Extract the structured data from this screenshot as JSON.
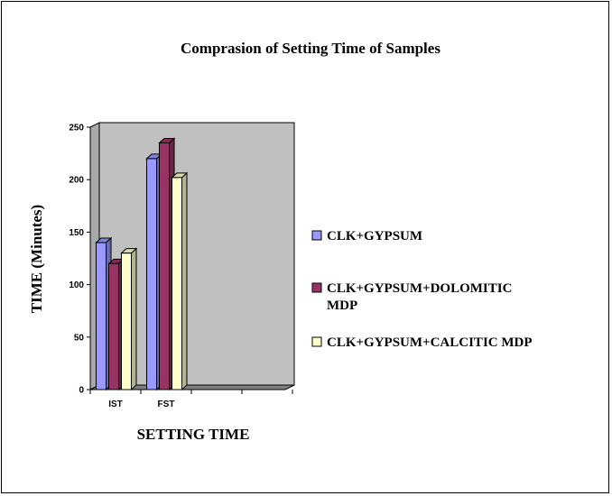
{
  "chart_data": {
    "type": "bar",
    "title": "Comprasion of Setting Time of Samples",
    "xlabel": "SETTING TIME",
    "ylabel": "TIME (Minutes)",
    "categories": [
      "IST",
      "FST"
    ],
    "series": [
      {
        "name": "CLK+GYPSUM",
        "values": [
          140,
          220
        ],
        "color": "#9999ff"
      },
      {
        "name": "CLK+GYPSUM+DOLOMITIC MDP",
        "values": [
          120,
          235
        ],
        "color": "#993366"
      },
      {
        "name": "CLK+GYPSUM+CALCITIC MDP",
        "values": [
          130,
          202
        ],
        "color": "#ffffcc"
      }
    ],
    "ylim": [
      0,
      250
    ],
    "yticks": [
      0,
      50,
      100,
      150,
      200,
      250
    ],
    "plot_background": "#c0c0c0",
    "grid": false,
    "legend_position": "right",
    "style": "3d-bar"
  }
}
